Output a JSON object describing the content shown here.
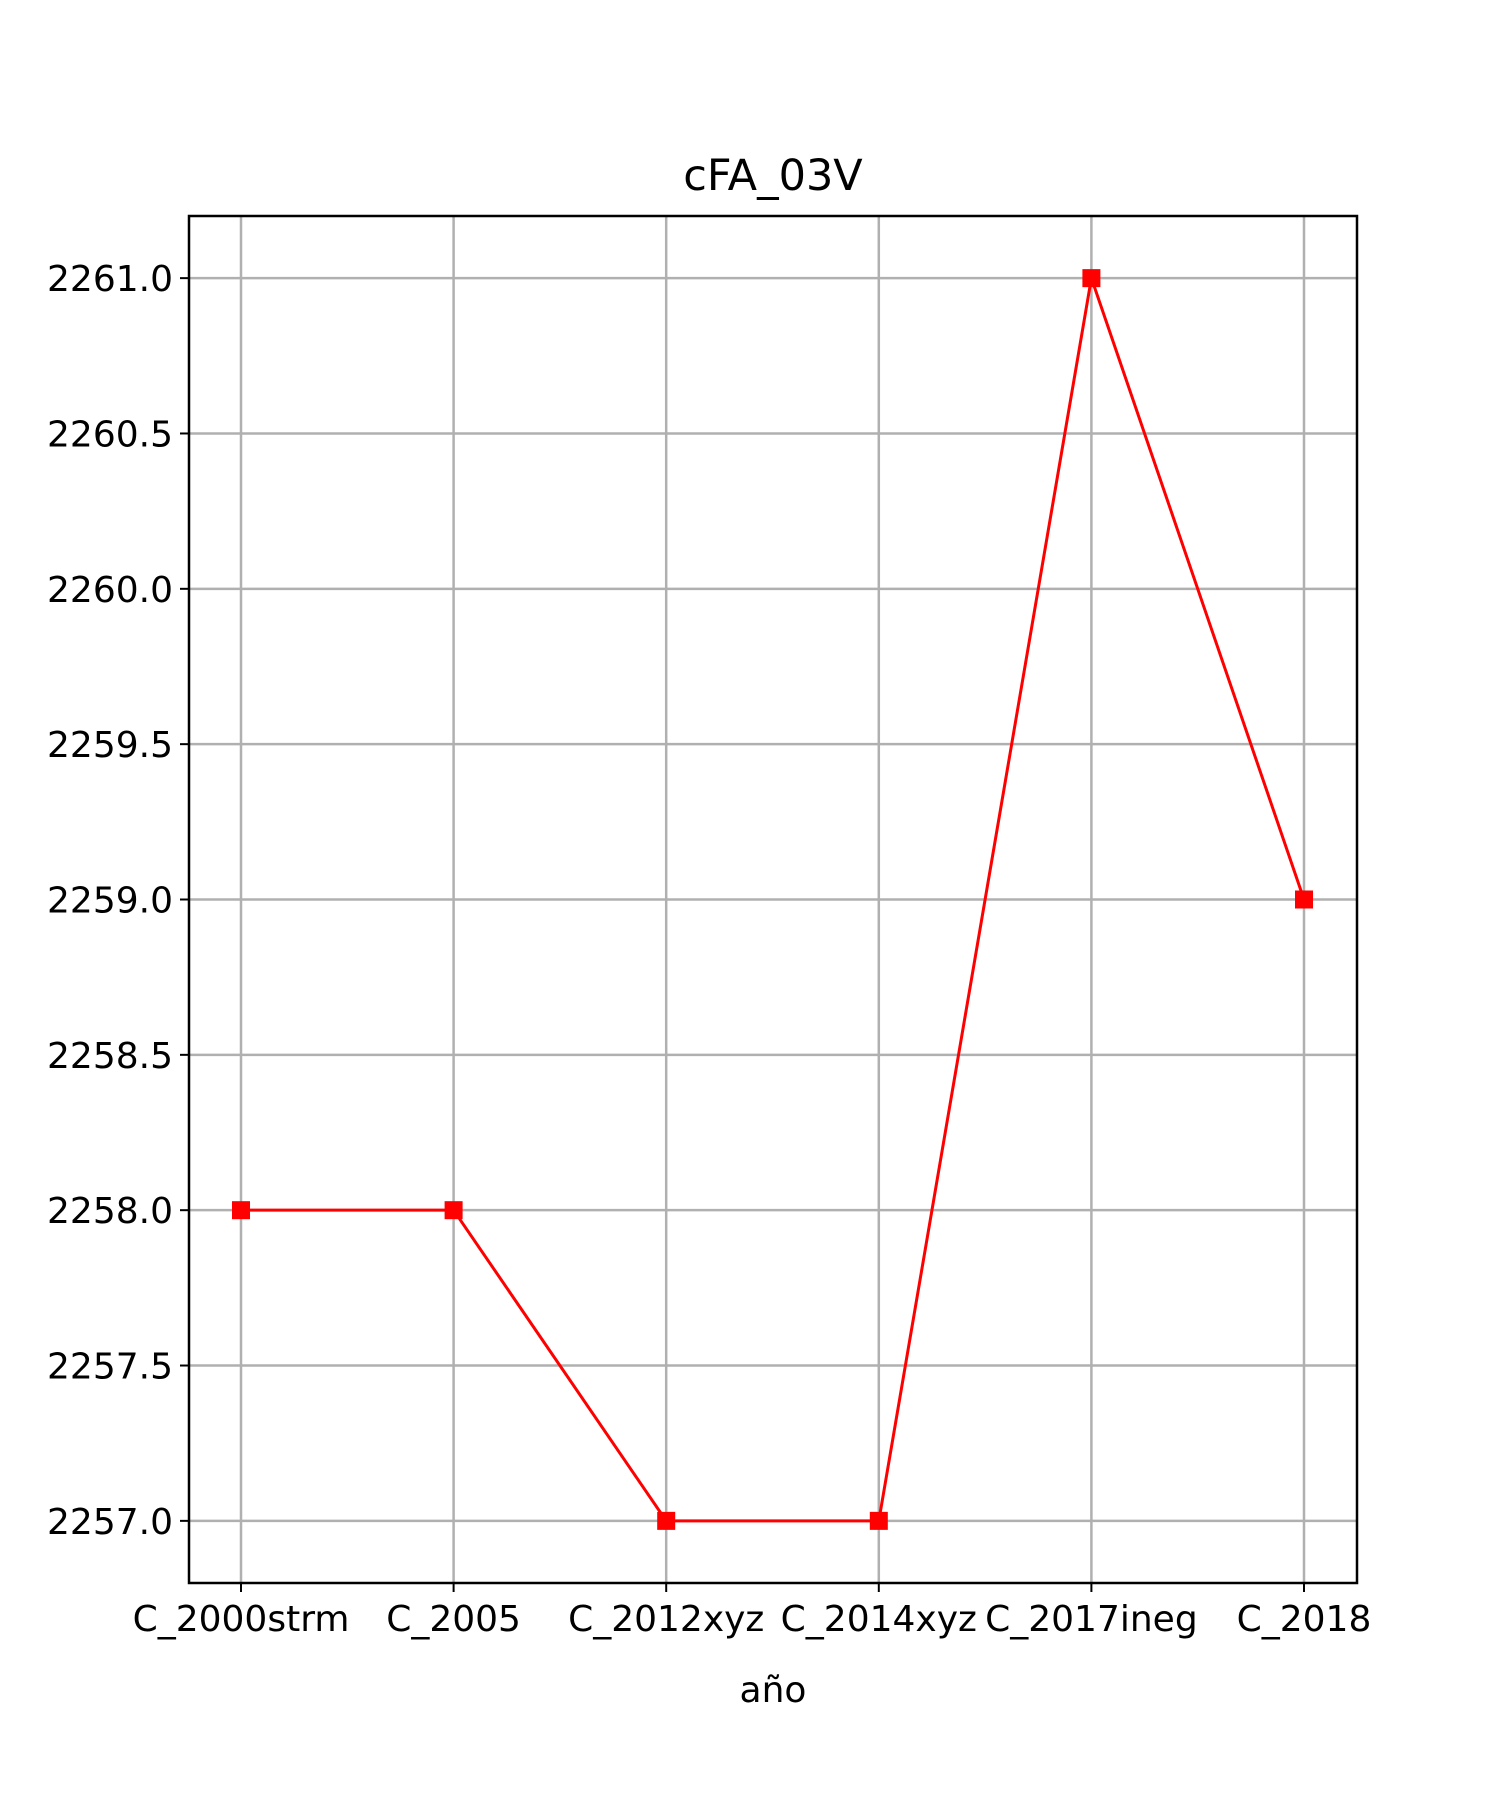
{
  "chart_data": {
    "type": "line",
    "title": "cFA_03V",
    "xlabel": "año",
    "ylabel": "",
    "categories": [
      "C_2000strm",
      "C_2005",
      "C_2012xyz",
      "C_2014xyz",
      "C_2017ineg",
      "C_2018"
    ],
    "series": [
      {
        "values": [
          2258.0,
          2258.0,
          2257.0,
          2257.0,
          2261.0,
          2259.0
        ],
        "color": "#ff0000",
        "marker": "square"
      }
    ],
    "ylim": [
      2256.8,
      2261.2
    ],
    "yticks": [
      2257.0,
      2257.5,
      2258.0,
      2258.5,
      2259.0,
      2259.5,
      2260.0,
      2260.5,
      2261.0
    ],
    "ytick_labels": [
      "2257.0",
      "2257.5",
      "2258.0",
      "2258.5",
      "2259.0",
      "2259.5",
      "2260.0",
      "2260.5",
      "2261.0"
    ],
    "grid": true,
    "legend": "none"
  }
}
